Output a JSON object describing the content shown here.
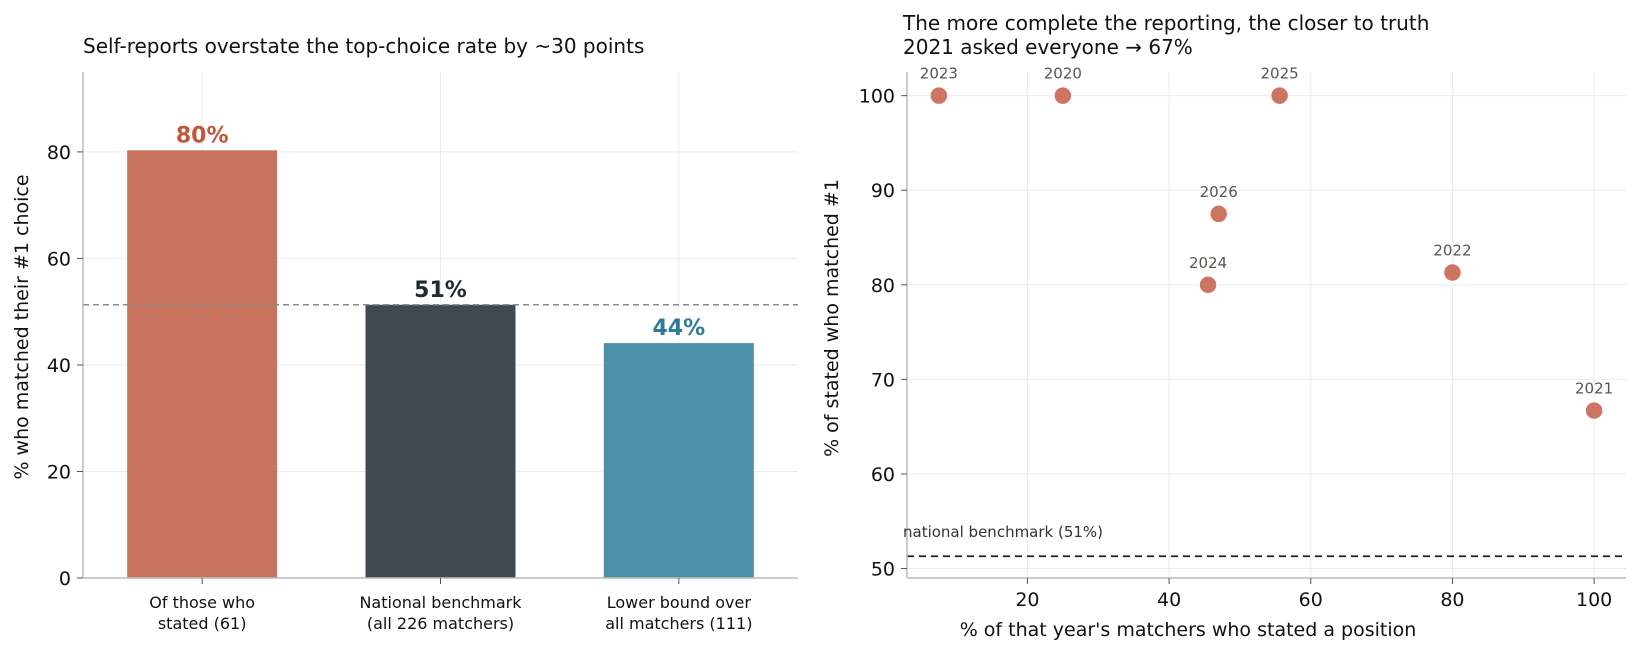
{
  "colors": {
    "terracotta": "#c8735d",
    "terracotta_text": "#c0553a",
    "slate": "#40494f",
    "slate_text": "#1f2a30",
    "teal": "#4d8fa9",
    "teal_text": "#2f7a96",
    "point": "#cd7561",
    "axis": "#bbbbbb",
    "grid": "#ebebeb",
    "annotation": "#5a5550"
  },
  "chart_data": [
    {
      "type": "bar",
      "title": "Self-reports overstate the top-choice rate by ~30 points",
      "xlabel": "",
      "ylabel": "% who matched their #1 choice",
      "categories": [
        "Of those who\nstated (61)",
        "National benchmark\n(all 226 matchers)",
        "Lower bound over\nall matchers (111)"
      ],
      "values": [
        80.3,
        51.3,
        44.1
      ],
      "value_labels": [
        "80%",
        "51%",
        "44%"
      ],
      "bar_colors": [
        "#c8735d",
        "#40494f",
        "#4d8fa9"
      ],
      "label_colors": [
        "#c0553a",
        "#1f2a30",
        "#2f7a96"
      ],
      "ylim": [
        0,
        95
      ],
      "yticks": [
        0,
        20,
        40,
        60,
        80
      ],
      "reference_line": 51.3,
      "grid": true
    },
    {
      "type": "scatter",
      "title": "The more complete the reporting, the closer to truth\n2021 asked everyone → 67%",
      "xlabel": "% of that year's matchers who stated a position",
      "ylabel": "% of stated who matched #1",
      "points": [
        {
          "label": "2023",
          "x": 7.5,
          "y": 100
        },
        {
          "label": "2020",
          "x": 25,
          "y": 100
        },
        {
          "label": "2025",
          "x": 55.6,
          "y": 100
        },
        {
          "label": "2026",
          "x": 47,
          "y": 87.5
        },
        {
          "label": "2024",
          "x": 45.5,
          "y": 80
        },
        {
          "label": "2022",
          "x": 80,
          "y": 81.3
        },
        {
          "label": "2021",
          "x": 100,
          "y": 66.7
        }
      ],
      "xlim": [
        3,
        104.5
      ],
      "ylim": [
        49,
        102.5
      ],
      "xticks": [
        20,
        40,
        60,
        80,
        100
      ],
      "yticks": [
        50,
        60,
        70,
        80,
        90,
        100
      ],
      "reference_line": 51.3,
      "reference_label": "national benchmark (51%)",
      "grid": true
    }
  ]
}
